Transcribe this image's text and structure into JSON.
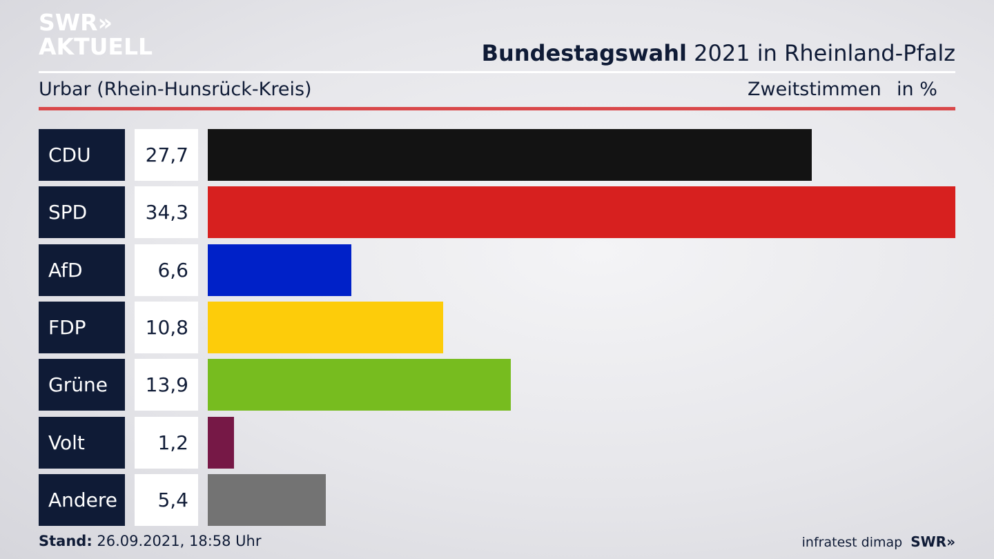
{
  "brand": {
    "line1": "SWR»",
    "line2": "AKTUELL"
  },
  "header": {
    "title_bold": "Bundestagswahl",
    "title_rest": " 2021 in Rheinland-Pfalz",
    "subtitle": "Urbar (Rhein-Hunsrück-Kreis)",
    "vote_type": "Zweitstimmen",
    "unit": "in %"
  },
  "chart_data": {
    "type": "bar",
    "orientation": "horizontal",
    "categories": [
      "CDU",
      "SPD",
      "AfD",
      "FDP",
      "Grüne",
      "Volt",
      "Andere"
    ],
    "values": [
      27.7,
      34.3,
      6.6,
      10.8,
      13.9,
      1.2,
      5.4
    ],
    "value_labels": [
      "27,7",
      "34,3",
      "6,6",
      "10,8",
      "13,9",
      "1,2",
      "5,4"
    ],
    "colors": [
      "#131313",
      "#d7201f",
      "#0021c8",
      "#fdcc0a",
      "#77bc1f",
      "#761846",
      "#737373"
    ],
    "xlim": [
      0,
      34.3
    ],
    "grid": false
  },
  "footer": {
    "stand_label": "Stand:",
    "stand_value": " 26.09.2021, 18:58 Uhr",
    "source": "infratest dimap",
    "brand": "SWR»"
  }
}
